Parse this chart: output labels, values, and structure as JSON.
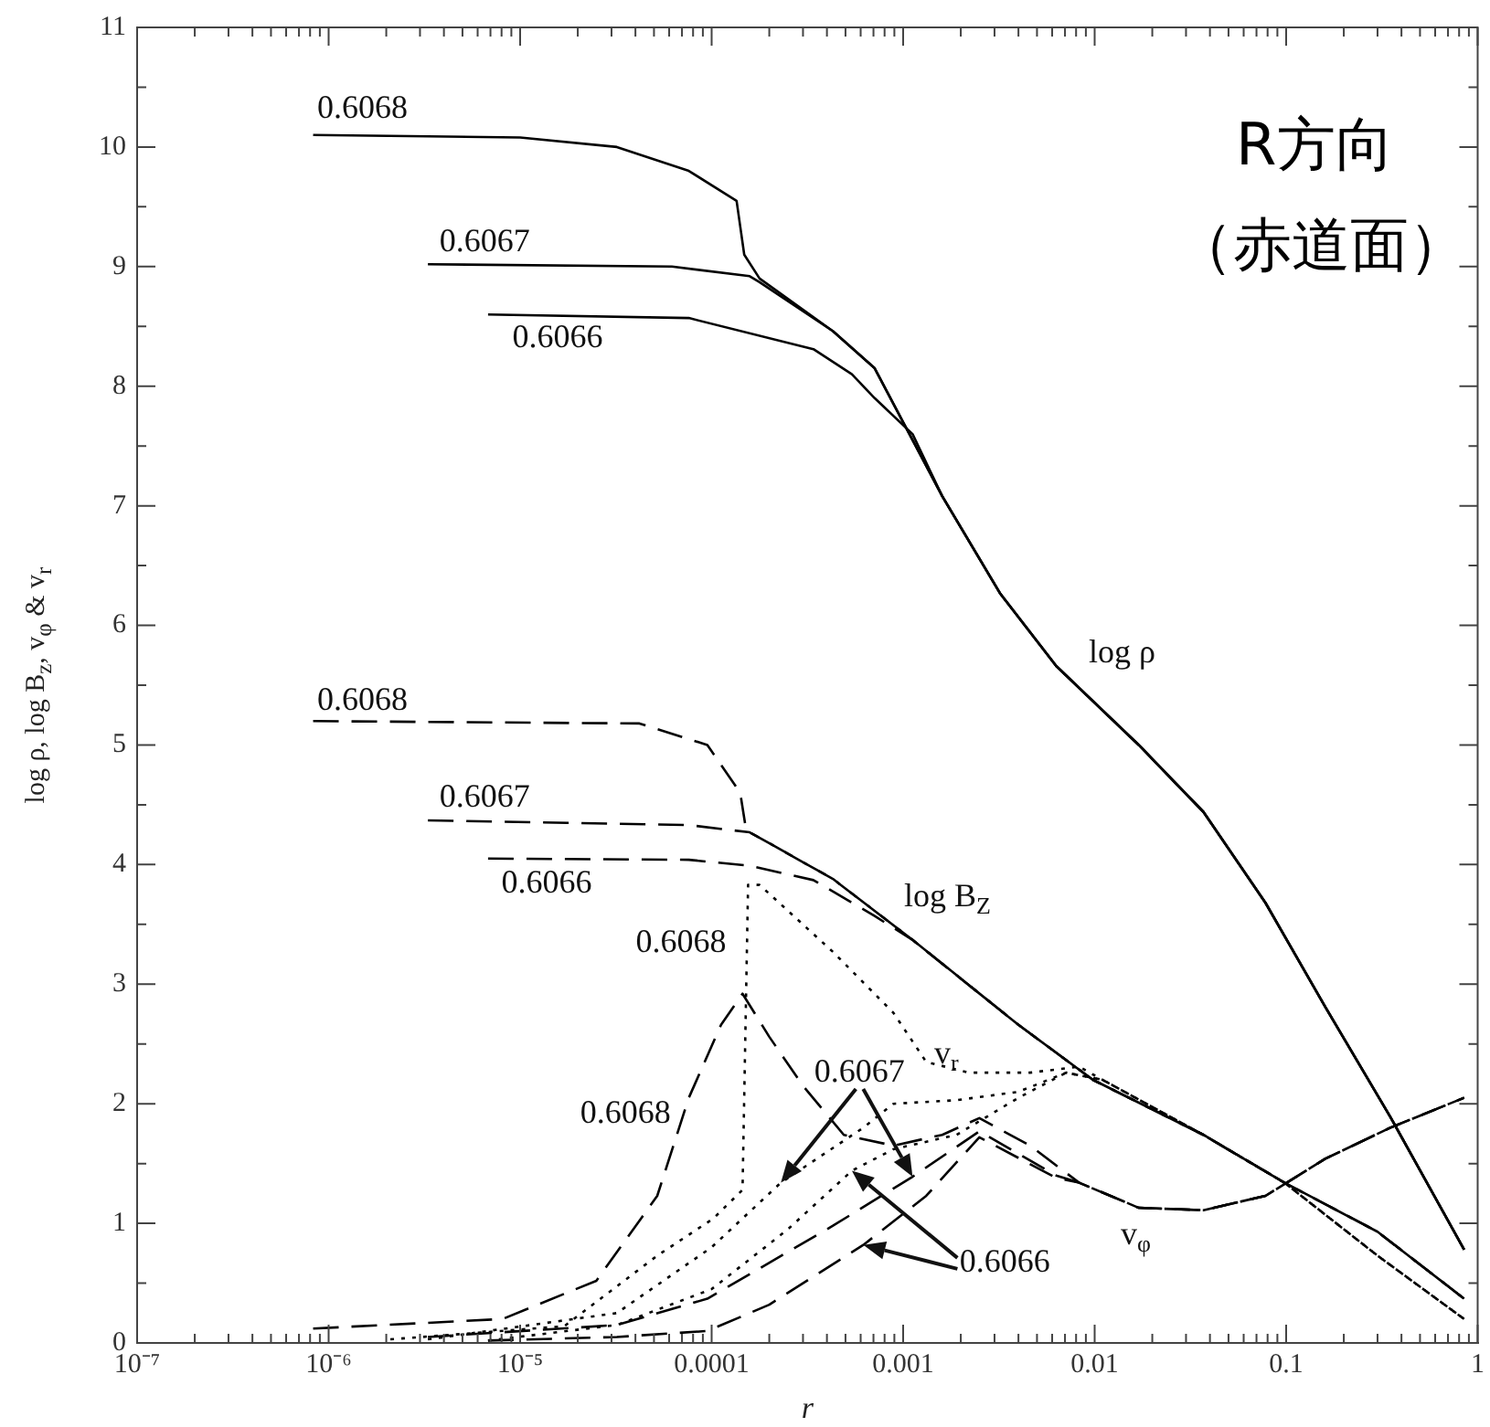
{
  "chart_data": {
    "type": "line",
    "xlabel": "r",
    "ylabel": "log ρ, log B$_{z}$, v$_{φ}$ & v$_{r}$",
    "log": "x",
    "grid": false,
    "legend": false,
    "marker": "none",
    "xlim": [
      1e-07,
      1
    ],
    "ylim": [
      0,
      11
    ],
    "xticks": [
      {
        "value": 1e-07,
        "label": "10⁻⁷"
      },
      {
        "value": 2e-07,
        "label": null
      },
      {
        "value": 3e-07,
        "label": null
      },
      {
        "value": 4e-07,
        "label": null
      },
      {
        "value": 5e-07,
        "label": null
      },
      {
        "value": 6e-07,
        "label": null
      },
      {
        "value": 7e-07,
        "label": null
      },
      {
        "value": 8e-07,
        "label": null
      },
      {
        "value": 9e-07,
        "label": null
      },
      {
        "value": 1e-06,
        "label": "10⁻⁶"
      },
      {
        "value": 2e-06,
        "label": null
      },
      {
        "value": 3e-06,
        "label": null
      },
      {
        "value": 4e-06,
        "label": null
      },
      {
        "value": 5e-06,
        "label": null
      },
      {
        "value": 6e-06,
        "label": null
      },
      {
        "value": 7e-06,
        "label": null
      },
      {
        "value": 8e-06,
        "label": null
      },
      {
        "value": 9e-06,
        "label": null
      },
      {
        "value": 1e-05,
        "label": "10⁻⁵"
      },
      {
        "value": 2e-05,
        "label": null
      },
      {
        "value": 3e-05,
        "label": null
      },
      {
        "value": 4e-05,
        "label": null
      },
      {
        "value": 5e-05,
        "label": null
      },
      {
        "value": 6e-05,
        "label": null
      },
      {
        "value": 7e-05,
        "label": null
      },
      {
        "value": 8e-05,
        "label": null
      },
      {
        "value": 9e-05,
        "label": null
      },
      0.0001,
      {
        "value": 0.0002,
        "label": null
      },
      {
        "value": 0.0003,
        "label": null
      },
      {
        "value": 0.0004,
        "label": null
      },
      {
        "value": 0.0005,
        "label": null
      },
      {
        "value": 0.0006,
        "label": null
      },
      {
        "value": 0.0007,
        "label": null
      },
      {
        "value": 0.0008,
        "label": null
      },
      {
        "value": 0.0009,
        "label": null
      },
      0.001,
      {
        "value": 0.002,
        "label": null
      },
      {
        "value": 0.003,
        "label": null
      },
      {
        "value": 0.004,
        "label": null
      },
      {
        "value": 0.005,
        "label": null
      },
      {
        "value": 0.006,
        "label": null
      },
      {
        "value": 0.007,
        "label": null
      },
      {
        "value": 0.008,
        "label": null
      },
      {
        "value": 0.009,
        "label": null
      },
      0.01,
      {
        "value": 0.02,
        "label": null
      },
      {
        "value": 0.03,
        "label": null
      },
      {
        "value": 0.04,
        "label": null
      },
      {
        "value": 0.05,
        "label": null
      },
      {
        "value": 0.06,
        "label": null
      },
      {
        "value": 0.07,
        "label": null
      },
      {
        "value": 0.08,
        "label": null
      },
      {
        "value": 0.09,
        "label": null
      },
      0.1,
      {
        "value": 0.2,
        "label": null
      },
      {
        "value": 0.3,
        "label": null
      },
      {
        "value": 0.4,
        "label": null
      },
      {
        "value": 0.5,
        "label": null
      },
      {
        "value": 0.6,
        "label": null
      },
      {
        "value": 0.7,
        "label": null
      },
      {
        "value": 0.8,
        "label": null
      },
      {
        "value": 0.9,
        "label": null
      },
      1
    ],
    "yticks": [
      0,
      {
        "value": 0.5,
        "label": null
      },
      1,
      {
        "value": 1.5,
        "label": null
      },
      2,
      {
        "value": 2.5,
        "label": null
      },
      3,
      {
        "value": 3.5,
        "label": null
      },
      4,
      {
        "value": 4.5,
        "label": null
      },
      5,
      {
        "value": 5.5,
        "label": null
      },
      6,
      {
        "value": 6.5,
        "label": null
      },
      7,
      {
        "value": 7.5,
        "label": null
      },
      8,
      {
        "value": 8.5,
        "label": null
      },
      9,
      {
        "value": 9.5,
        "label": null
      },
      10,
      {
        "value": 10.5,
        "label": null
      },
      11
    ],
    "series": [
      {
        "color": "#000000",
        "line_style": "solid",
        "x": [
          8.3e-07,
          1e-05,
          3.2e-05,
          7.6e-05,
          0.000135,
          0.000148,
          0.000178,
          0.00043,
          0.00071,
          0.0016,
          0.0032,
          0.0063,
          0.017,
          0.037,
          0.078,
          0.16,
          0.35,
          0.85
        ],
        "values": [
          10.1,
          10.08,
          10.0,
          9.8,
          9.55,
          9.1,
          8.9,
          8.46,
          8.15,
          7.08,
          6.27,
          5.66,
          5.0,
          4.44,
          3.68,
          2.81,
          1.89,
          0.78
        ]
      },
      {
        "color": "#000000",
        "line_style": "solid",
        "x": [
          3.3e-06,
          6.2e-05,
          0.000158,
          0.000178,
          0.00043,
          0.00071,
          0.0016,
          0.0032,
          0.0063,
          0.017,
          0.037,
          0.078,
          0.16,
          0.35,
          0.85
        ],
        "values": [
          9.02,
          9.0,
          8.92,
          8.87,
          8.46,
          8.15,
          7.08,
          6.27,
          5.66,
          5.0,
          4.44,
          3.68,
          2.81,
          1.89,
          0.78
        ]
      },
      {
        "color": "#000000",
        "line_style": "solid",
        "x": [
          6.8e-06,
          7.6e-05,
          0.00034,
          0.00054,
          0.00071,
          0.00112,
          0.0016,
          0.0032,
          0.0063,
          0.017,
          0.037,
          0.078,
          0.16,
          0.35,
          0.85
        ],
        "values": [
          8.6,
          8.57,
          8.31,
          8.1,
          7.9,
          7.6,
          7.08,
          6.27,
          5.66,
          5.0,
          4.44,
          3.68,
          2.81,
          1.89,
          0.78
        ]
      },
      {
        "color": "#000000",
        "line_style": "dashed",
        "x": [
          8.3e-07,
          4.2e-05,
          9.5e-05,
          0.000141,
          0.000151,
          0.000158,
          0.00043,
          0.00112,
          0.004,
          0.0098,
          0.037,
          0.098,
          0.3,
          0.85
        ],
        "values": [
          5.2,
          5.18,
          5.0,
          4.6,
          4.3,
          4.27,
          3.88,
          3.37,
          2.66,
          2.2,
          1.74,
          1.34,
          0.93,
          0.37
        ]
      },
      {
        "color": "#000000",
        "line_style": "dashed",
        "x": [
          3.3e-06,
          7.6e-05,
          0.000158,
          0.00043,
          0.00112,
          0.004,
          0.0098,
          0.037,
          0.098,
          0.3,
          0.85
        ],
        "values": [
          4.37,
          4.33,
          4.27,
          3.88,
          3.37,
          2.66,
          2.2,
          1.74,
          1.34,
          0.93,
          0.37
        ]
      },
      {
        "color": "#000000",
        "line_style": "dashed",
        "x": [
          6.8e-06,
          7.6e-05,
          0.000158,
          0.00034,
          0.00071,
          0.00112,
          0.004,
          0.0098,
          0.037,
          0.098,
          0.3,
          0.85
        ],
        "values": [
          4.05,
          4.04,
          3.99,
          3.87,
          3.57,
          3.37,
          2.66,
          2.2,
          1.74,
          1.34,
          0.93,
          0.37
        ]
      },
      {
        "color": "#000000",
        "line_style": "dotted",
        "x": [
          2.1e-06,
          1.7e-05,
          5.2e-05,
          0.000102,
          0.000145,
          0.000155,
          0.000178,
          0.00043,
          0.00089,
          0.00132,
          0.0022,
          0.0046,
          0.0083,
          0.011,
          0.037,
          0.098,
          0.3,
          0.85
        ],
        "values": [
          0.03,
          0.14,
          0.73,
          1.04,
          1.28,
          3.83,
          3.83,
          3.27,
          2.76,
          2.35,
          2.26,
          2.26,
          2.31,
          2.2,
          1.74,
          1.34,
          0.73,
          0.2
        ]
      },
      {
        "color": "#000000",
        "line_style": "dotted",
        "x": [
          3.3e-06,
          3.2e-05,
          0.0001,
          0.00023,
          0.00062,
          0.00089,
          0.0019,
          0.004,
          0.0071,
          0.011,
          0.037,
          0.098,
          0.3,
          0.85
        ],
        "values": [
          0.03,
          0.25,
          0.8,
          1.34,
          1.8,
          2.0,
          2.03,
          2.1,
          2.26,
          2.2,
          1.74,
          1.34,
          0.73,
          0.2
        ]
      },
      {
        "color": "#000000",
        "line_style": "dotted",
        "x": [
          6.8e-06,
          3.2e-05,
          0.0001,
          0.00025,
          0.00054,
          0.00089,
          0.0019,
          0.004,
          0.0071,
          0.011,
          0.037,
          0.098,
          0.3,
          0.85
        ],
        "values": [
          0.02,
          0.15,
          0.45,
          0.95,
          1.44,
          1.62,
          1.74,
          2.05,
          2.26,
          2.2,
          1.74,
          1.34,
          0.73,
          0.2
        ]
      },
      {
        "color": "#000000",
        "line_style": "dashed",
        "x": [
          8.3e-07,
          8.1e-06,
          2.5e-05,
          5.2e-05,
          7.6e-05,
          0.000112,
          0.000145,
          0.0002,
          0.0003,
          0.00049,
          0.00089,
          0.0016,
          0.0025,
          0.0046,
          0.0083,
          0.017,
          0.037,
          0.078,
          0.16,
          0.35,
          0.85
        ],
        "values": [
          0.12,
          0.2,
          0.52,
          1.23,
          2.05,
          2.66,
          2.92,
          2.56,
          2.15,
          1.74,
          1.65,
          1.74,
          1.88,
          1.65,
          1.34,
          1.13,
          1.11,
          1.23,
          1.54,
          1.8,
          2.05
        ]
      },
      {
        "color": "#000000",
        "line_style": "dashed",
        "x": [
          3.3e-06,
          3.2e-05,
          9.5e-05,
          0.00043,
          0.00112,
          0.0025,
          0.0063,
          0.0083,
          0.017,
          0.037,
          0.078,
          0.16,
          0.35,
          0.85
        ],
        "values": [
          0.05,
          0.15,
          0.37,
          0.98,
          1.39,
          1.77,
          1.4,
          1.34,
          1.13,
          1.11,
          1.23,
          1.54,
          1.8,
          2.05
        ]
      },
      {
        "color": "#000000",
        "line_style": "dashed",
        "x": [
          6.8e-06,
          3.2e-05,
          9.5e-05,
          0.0002,
          0.00062,
          0.00132,
          0.0025,
          0.0063,
          0.0083,
          0.017,
          0.037,
          0.078,
          0.16,
          0.35,
          0.85
        ],
        "values": [
          0.02,
          0.05,
          0.1,
          0.32,
          0.82,
          1.23,
          1.72,
          1.38,
          1.34,
          1.13,
          1.11,
          1.23,
          1.54,
          1.8,
          2.05
        ]
      }
    ],
    "annotations": [
      "0.6068",
      "0.6067",
      "0.6066",
      "log ρ",
      "0.6068",
      "0.6067",
      "0.6066",
      "log B$_{Z}$",
      "0.6068",
      "0.6068",
      {
        "text": "0.6067",
        "x": 0.00112,
        "y": 1.39
      },
      "0.6066",
      "v$_{r}$",
      "v$_{φ}$",
      "R方向",
      "（赤道面）"
    ]
  }
}
